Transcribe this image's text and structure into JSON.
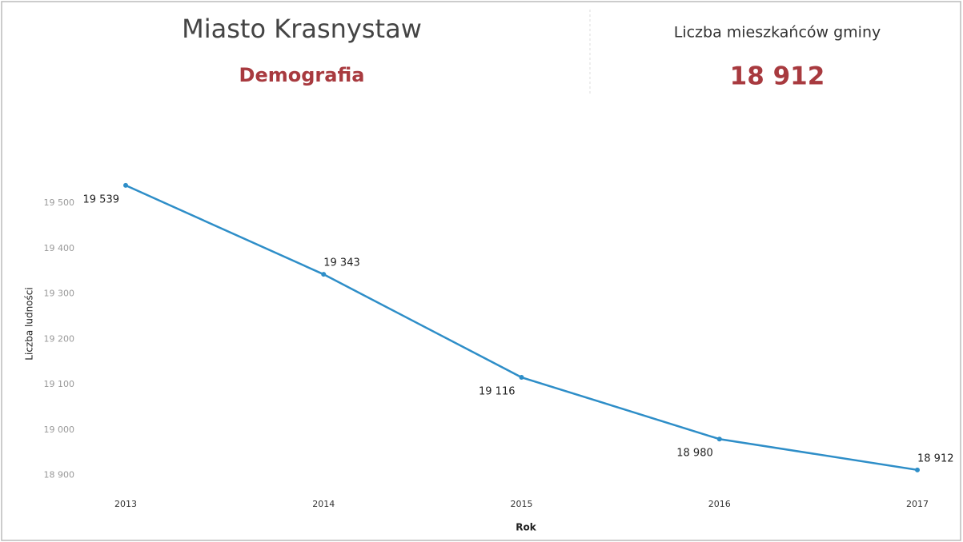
{
  "header": {
    "title": "Miasto Krasnystaw",
    "subtitle": "Demografia"
  },
  "kpi": {
    "label": "Liczba mieszkańców gminy",
    "value": "18 912"
  },
  "chart_data": {
    "type": "line",
    "categories": [
      "2013",
      "2014",
      "2015",
      "2016",
      "2017"
    ],
    "values": [
      19539,
      19343,
      19116,
      18980,
      18912
    ],
    "value_labels": [
      "19 539",
      "19 343",
      "19 116",
      "18 980",
      "18 912"
    ],
    "color": "#2e8ec8",
    "xlabel": "Rok",
    "ylabel": "Liczba ludności",
    "ylim": [
      18880,
      19560
    ],
    "yticks": [
      {
        "value": 18900,
        "label": "18 900"
      },
      {
        "value": 19000,
        "label": "19 000"
      },
      {
        "value": 19100,
        "label": "19 100"
      },
      {
        "value": 19200,
        "label": "19 200"
      },
      {
        "value": 19300,
        "label": "19 300"
      },
      {
        "value": 19400,
        "label": "19 400"
      },
      {
        "value": 19500,
        "label": "19 500"
      }
    ]
  }
}
